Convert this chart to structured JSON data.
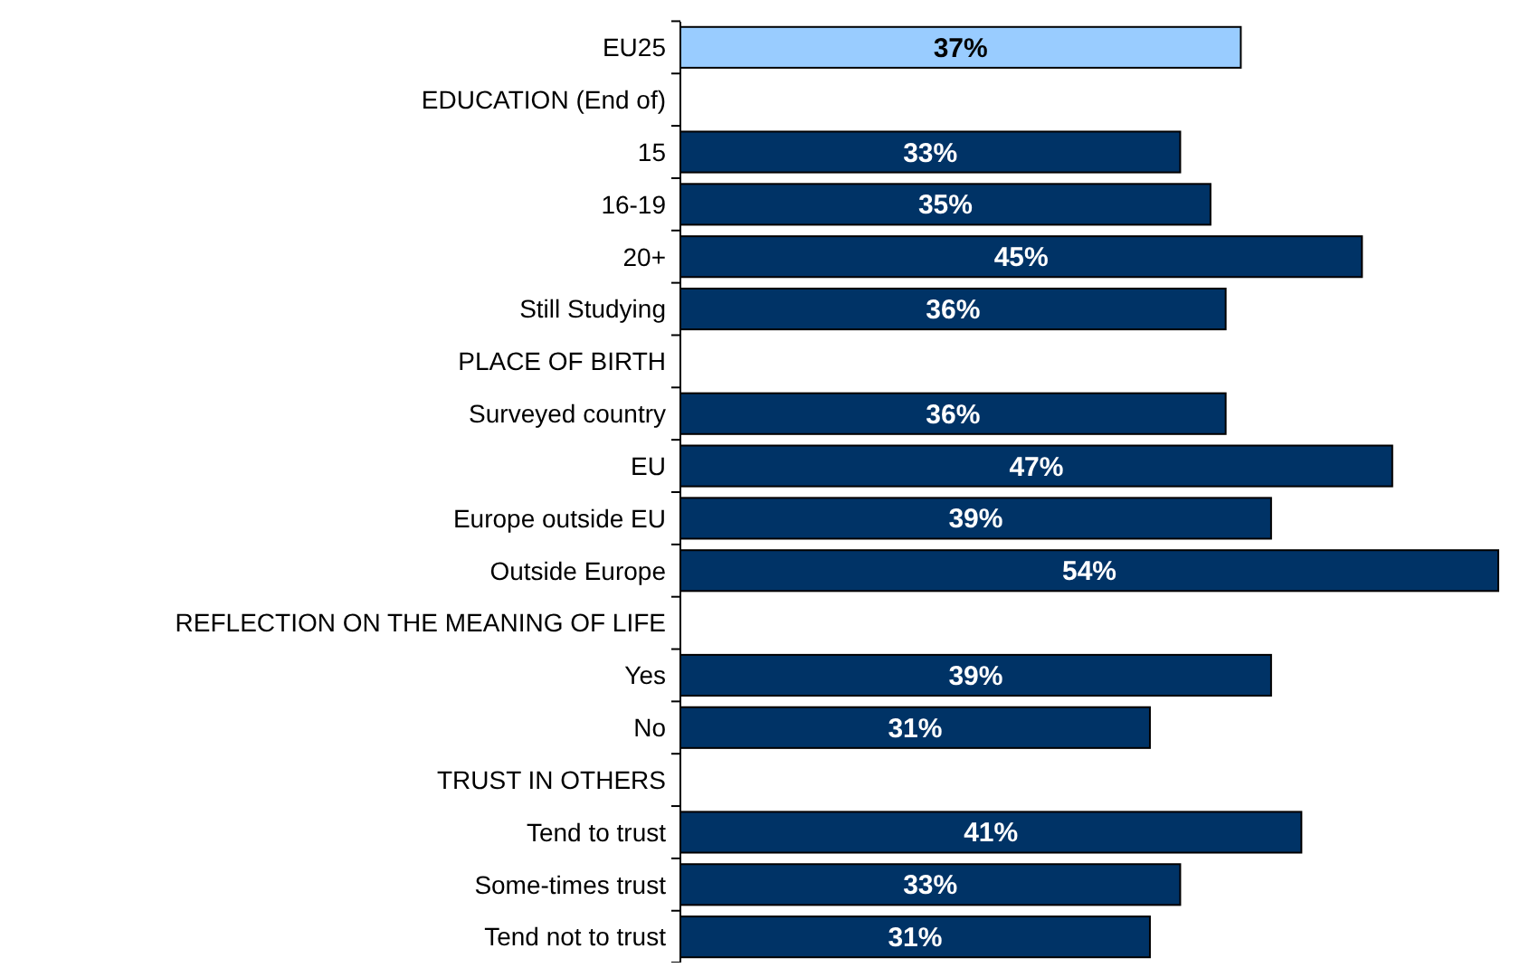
{
  "chart_data": {
    "type": "bar",
    "orientation": "horizontal",
    "value_labels": [
      "37%",
      null,
      "33%",
      "35%",
      "45%",
      "36%",
      null,
      "36%",
      "47%",
      "39%",
      "54%",
      null,
      "39%",
      "31%",
      null,
      "41%",
      "33%",
      "31%"
    ],
    "categories": [
      "EU25",
      "EDUCATION (End of)",
      "15",
      "16-19",
      "20+",
      "Still Studying",
      "PLACE OF BIRTH",
      "Surveyed country",
      "EU",
      "Europe outside EU",
      "Outside Europe",
      "REFLECTION ON THE MEANING OF LIFE",
      "Yes",
      "No",
      "TRUST IN OTHERS",
      "Tend to trust",
      "Some-times trust",
      "Tend not to trust"
    ],
    "values": [
      37,
      null,
      33,
      35,
      45,
      36,
      null,
      36,
      47,
      39,
      54,
      null,
      39,
      31,
      null,
      41,
      33,
      31
    ],
    "colors": [
      "#99ccff",
      null,
      "#003366",
      "#003366",
      "#003366",
      "#003366",
      null,
      "#003366",
      "#003366",
      "#003366",
      "#003366",
      null,
      "#003366",
      "#003366",
      null,
      "#003366",
      "#003366",
      "#003366"
    ]
  }
}
